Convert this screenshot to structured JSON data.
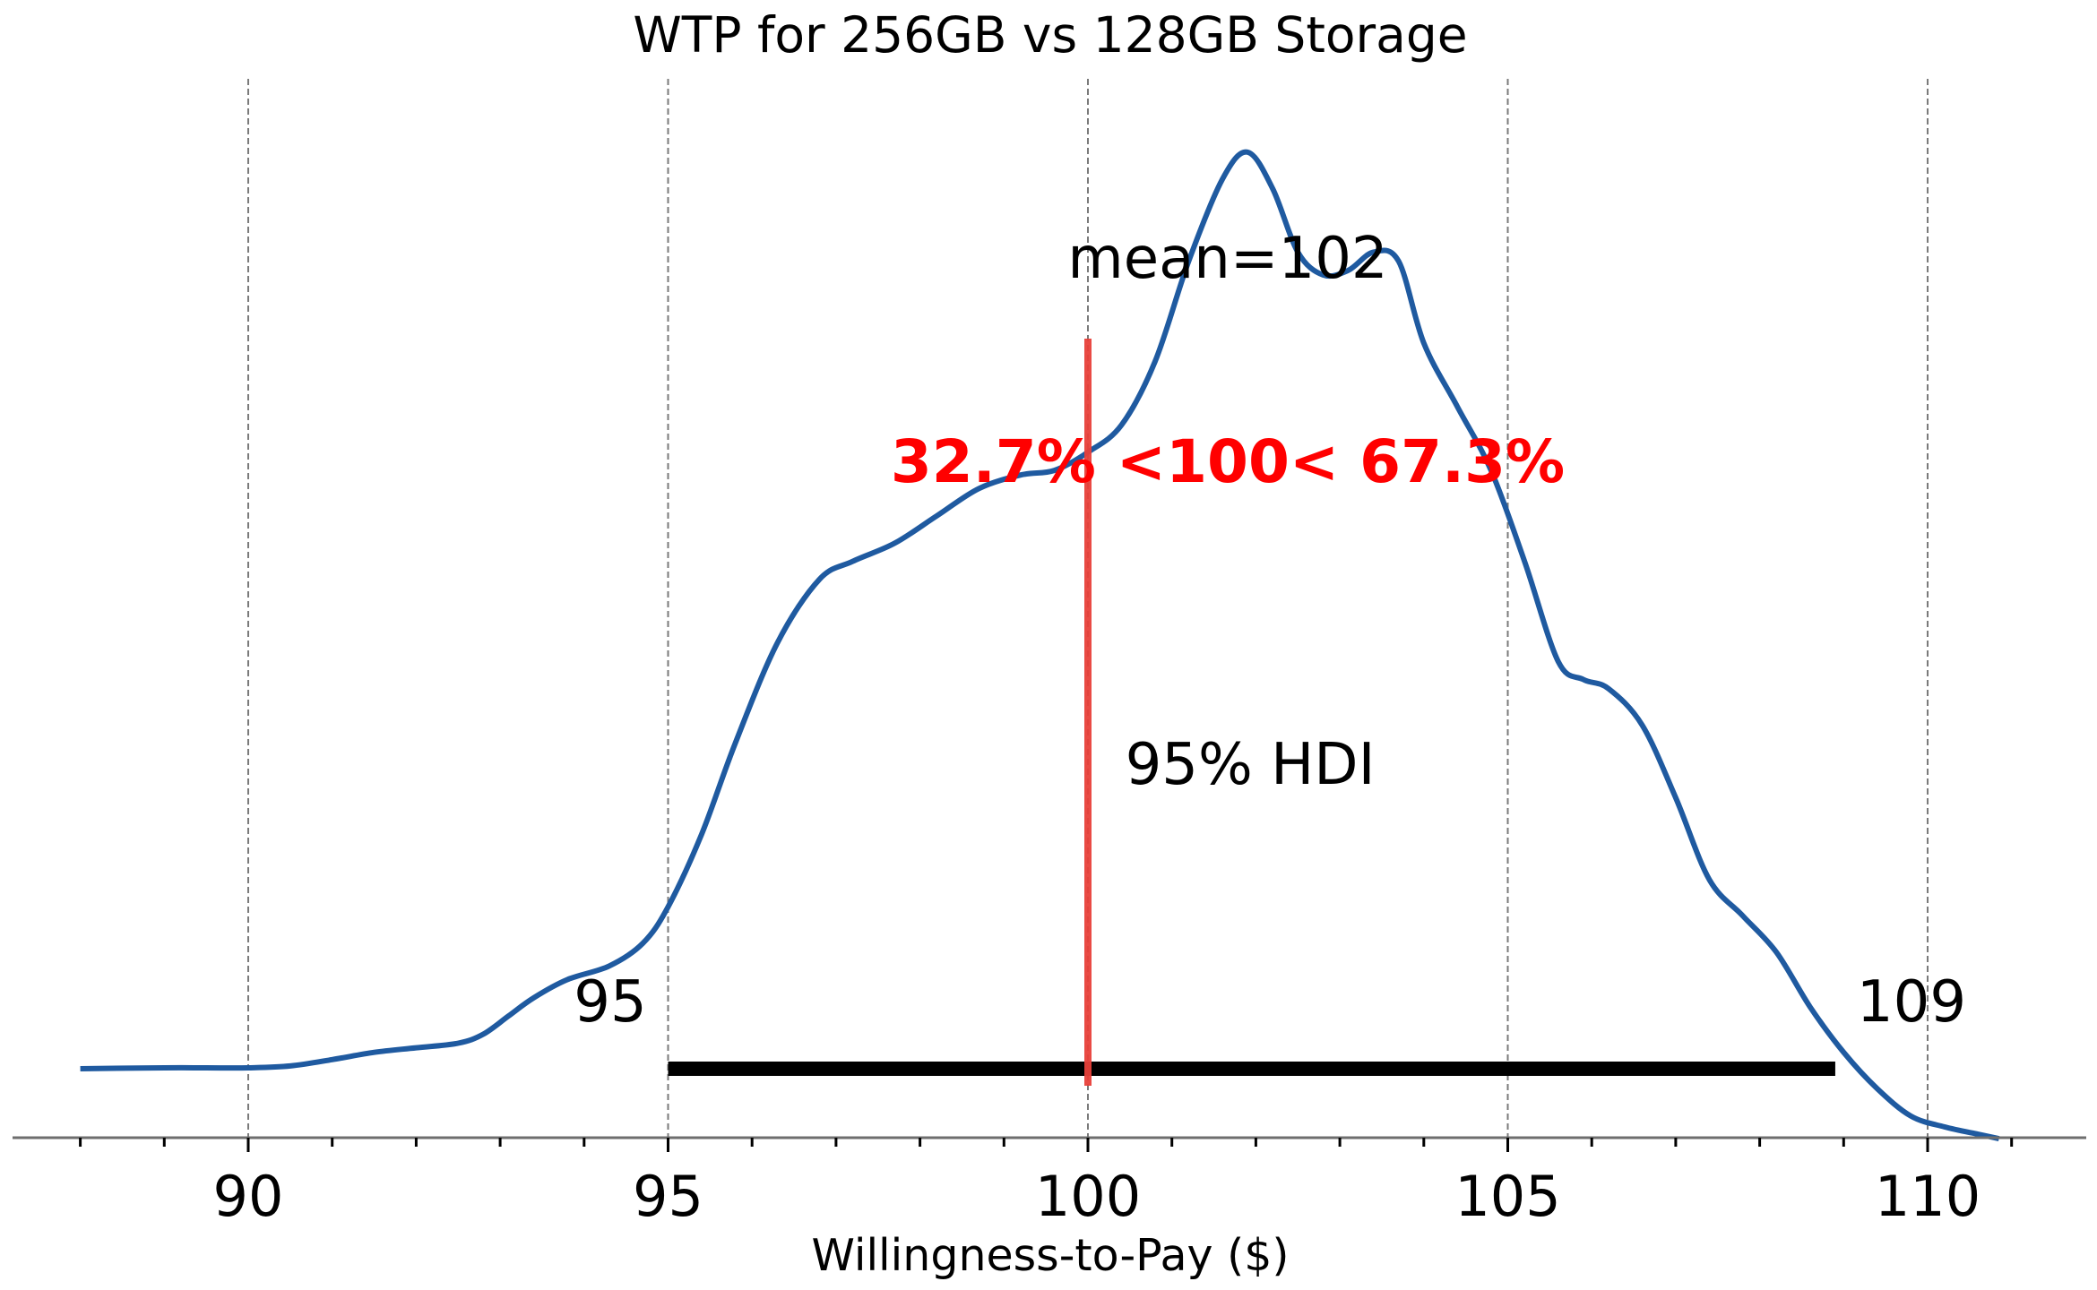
{
  "chart_data": {
    "type": "area",
    "title": "WTP for 256GB vs 128GB Storage",
    "xlabel": "Willingness-to-Pay ($)",
    "ylabel": "",
    "xlim": [
      88,
      111.2
    ],
    "major_ticks": [
      90,
      95,
      100,
      105,
      110
    ],
    "major_tick_labels": [
      "90",
      "95",
      "100",
      "105",
      "110"
    ],
    "minor_tick_step": 1,
    "grid": "vertical dashed at major ticks",
    "density_curve": {
      "color": "#1f5aa0",
      "x": [
        88.0,
        89.0,
        89.5,
        90.0,
        90.5,
        91.0,
        91.5,
        92.0,
        92.5,
        92.8,
        93.1,
        93.4,
        93.8,
        94.3,
        94.7,
        95.0,
        95.4,
        95.8,
        96.3,
        96.8,
        97.2,
        97.7,
        98.2,
        98.7,
        99.2,
        99.6,
        100.0,
        100.4,
        100.8,
        101.2,
        101.6,
        101.9,
        102.2,
        102.5,
        102.8,
        103.1,
        103.4,
        103.7,
        104.0,
        104.4,
        104.8,
        105.2,
        105.6,
        105.9,
        106.2,
        106.6,
        107.0,
        107.4,
        107.8,
        108.2,
        108.6,
        109.0,
        109.4,
        109.8,
        110.2,
        110.6,
        110.85
      ],
      "y": [
        0.002,
        0.003,
        0.003,
        0.003,
        0.005,
        0.012,
        0.02,
        0.025,
        0.03,
        0.04,
        0.06,
        0.08,
        0.1,
        0.115,
        0.14,
        0.18,
        0.26,
        0.36,
        0.47,
        0.54,
        0.56,
        0.58,
        0.61,
        0.64,
        0.655,
        0.66,
        0.68,
        0.71,
        0.78,
        0.89,
        0.98,
        1.01,
        0.97,
        0.9,
        0.875,
        0.88,
        0.9,
        0.89,
        0.8,
        0.73,
        0.66,
        0.56,
        0.45,
        0.43,
        0.42,
        0.38,
        0.3,
        0.21,
        0.17,
        0.13,
        0.07,
        0.02,
        -0.02,
        -0.05,
        -0.062,
        -0.07,
        -0.075
      ]
    },
    "reference_value": 100,
    "reference_color": "#e8403a",
    "reference_label": "32.7% <100< 67.3%",
    "reference_label_color": "#ff0000",
    "mean_label": "mean=102",
    "hdi": {
      "label": "95% HDI",
      "low": 95,
      "high": 108.9,
      "low_label": "95",
      "high_label": "109",
      "color": "#000000"
    }
  }
}
